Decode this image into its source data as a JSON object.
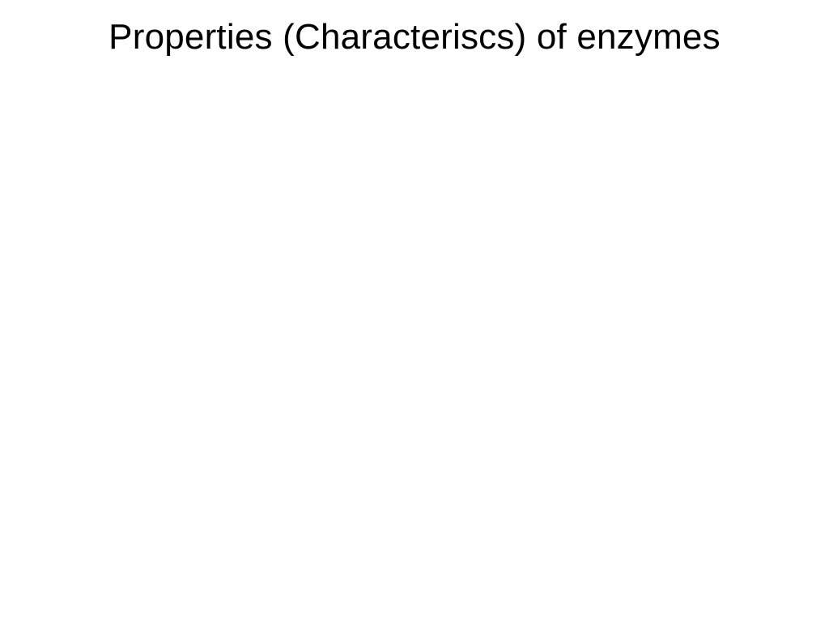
{
  "slide": {
    "title": "Properties (Characteriscs) of enzymes",
    "background_color": "#ffffff",
    "title_color": "#000000",
    "title_fontsize": 44,
    "title_fontweight": 400,
    "title_align": "center",
    "font_family": "Tahoma, Verdana, Geneva, sans-serif"
  }
}
